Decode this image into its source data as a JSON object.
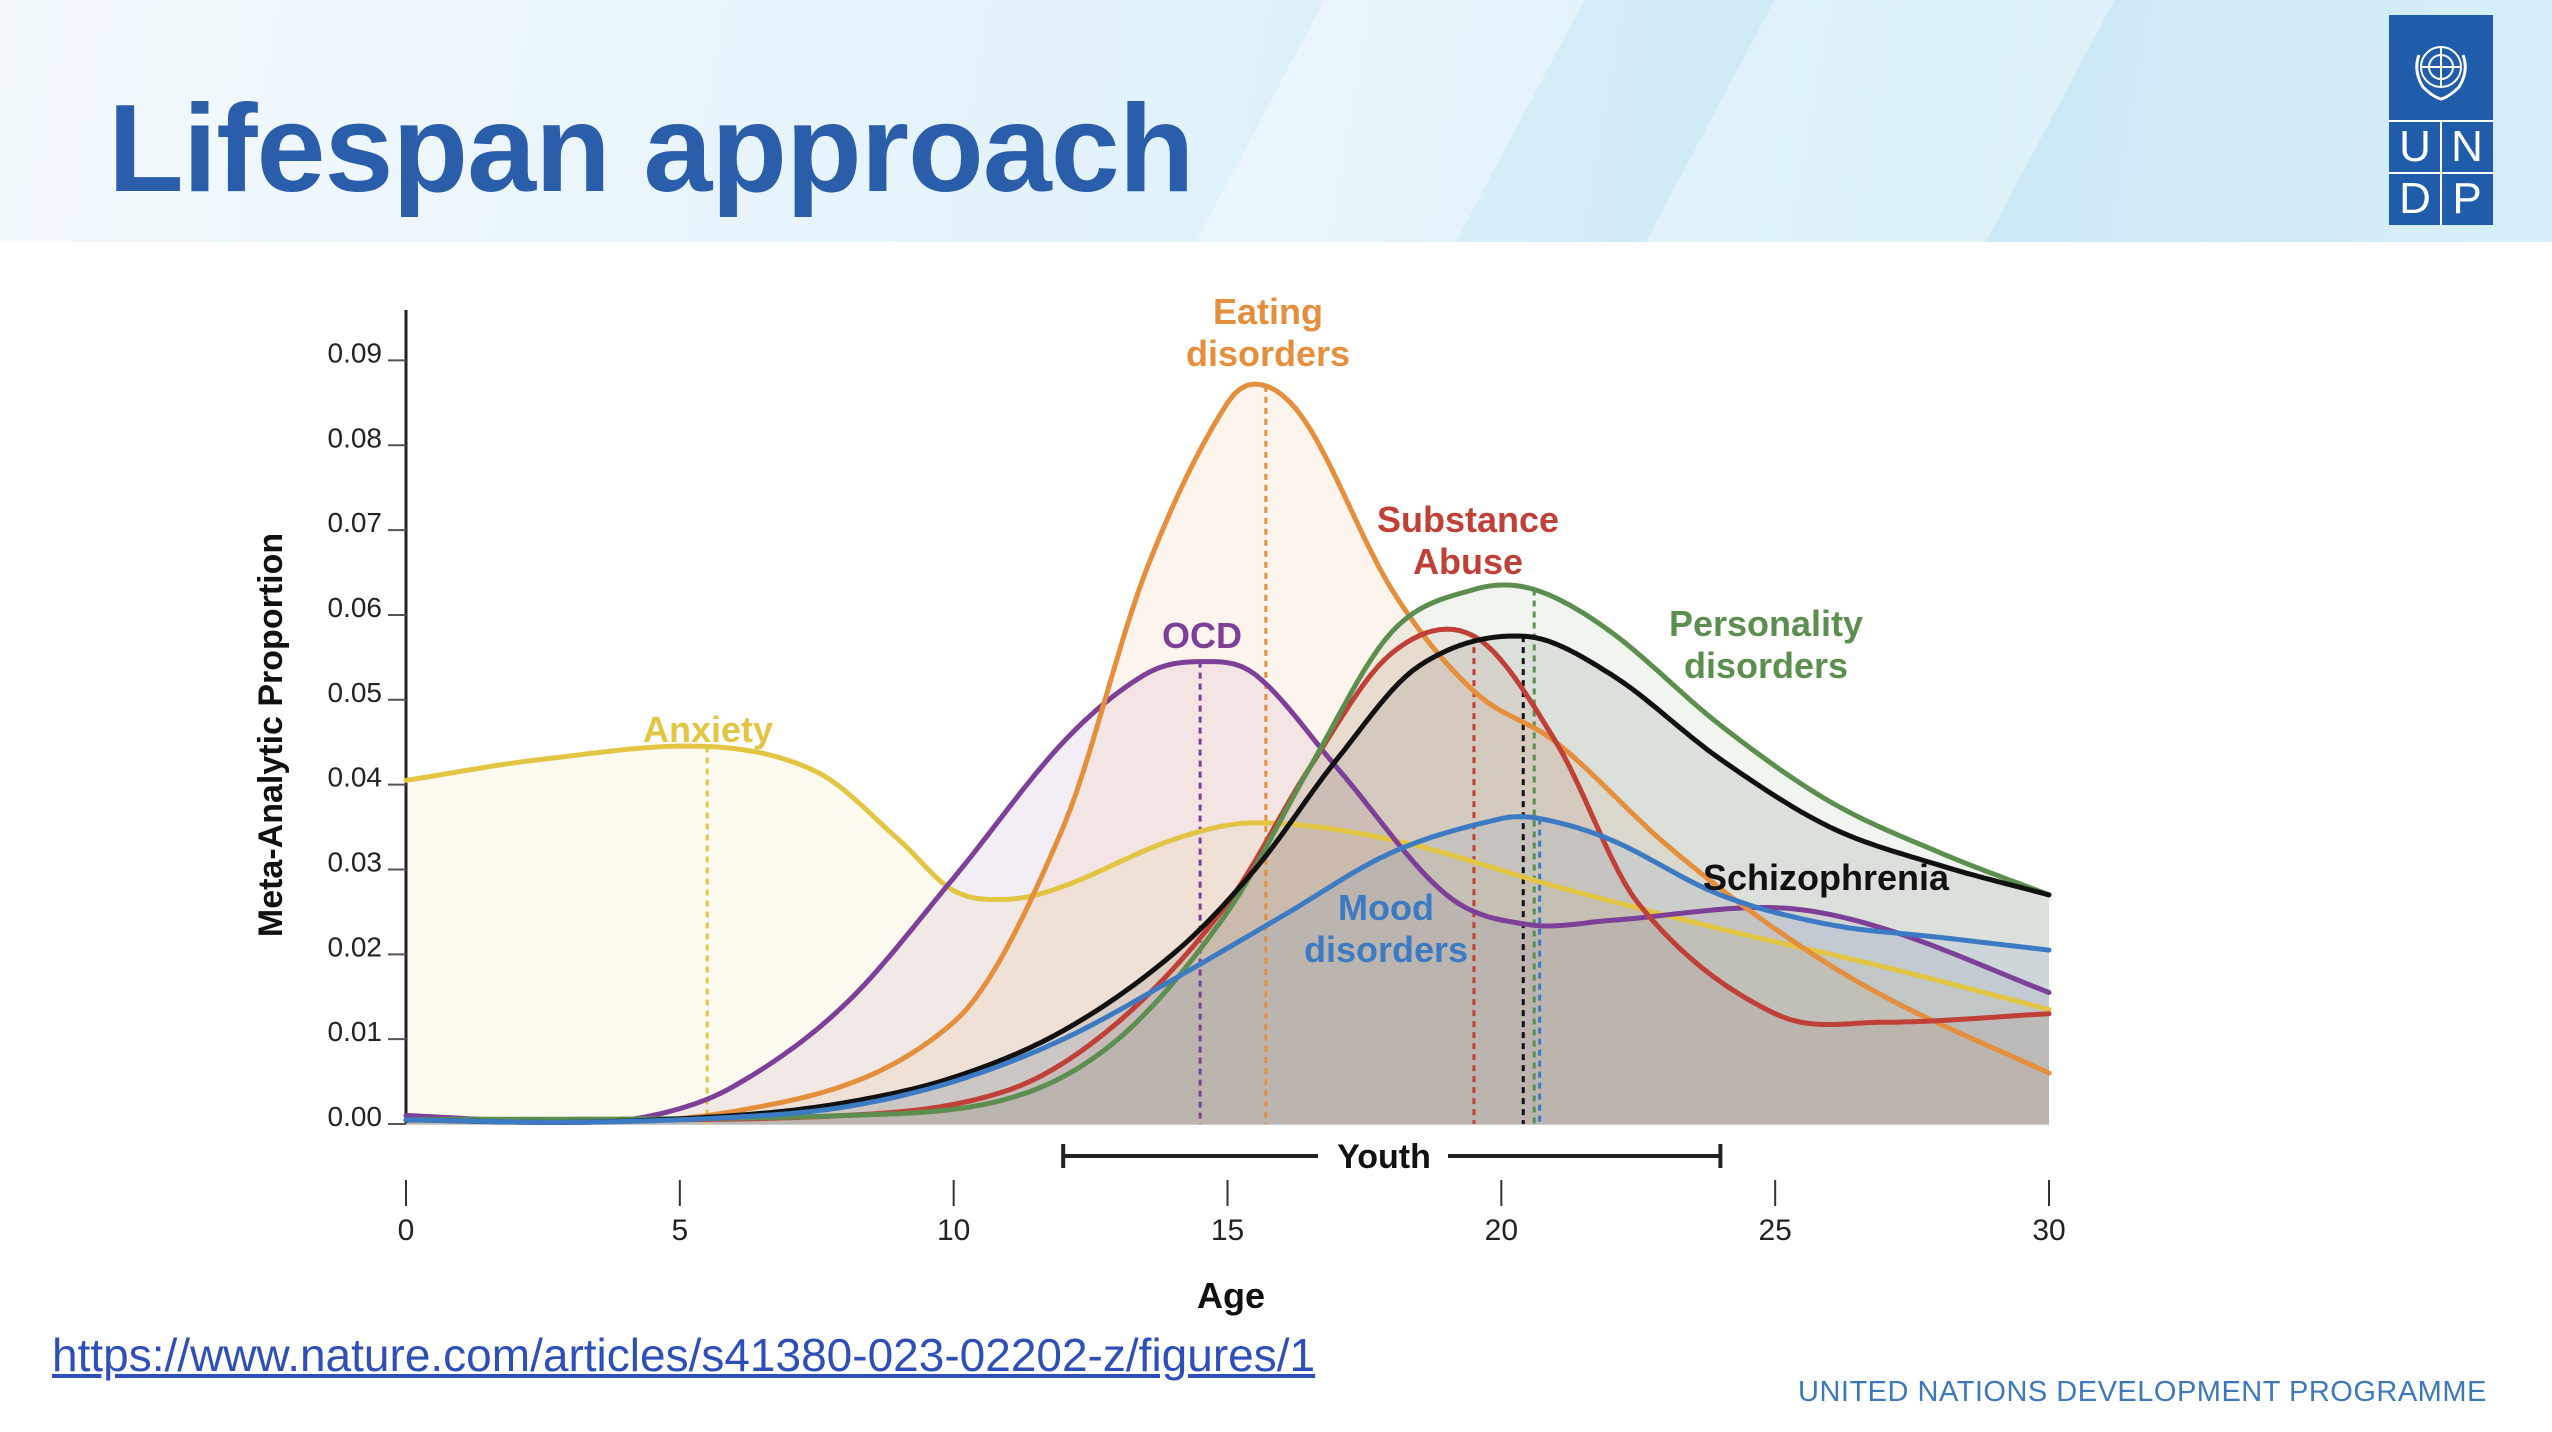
{
  "slide": {
    "title": "Lifespan approach",
    "logo_letters": [
      "U",
      "N",
      "D",
      "P"
    ],
    "source_url": "https://www.nature.com/articles/s41380-023-02202-z/figures/1",
    "footer": "UNITED NATIONS DEVELOPMENT PROGRAMME"
  },
  "chart_data": {
    "type": "line",
    "title": "",
    "xlabel": "Age",
    "ylabel": "Meta-Analytic Proportion",
    "xlim": [
      0,
      30
    ],
    "ylim": [
      0,
      0.095
    ],
    "x_ticks": [
      0,
      5,
      10,
      15,
      20,
      25,
      30
    ],
    "y_ticks": [
      "0.00",
      "0.01",
      "0.02",
      "0.03",
      "0.04",
      "0.05",
      "0.06",
      "0.07",
      "0.08",
      "0.09"
    ],
    "grid": false,
    "legend": "none (series labeled directly on curves)",
    "youth_range": {
      "label": "Youth",
      "from": 12,
      "to": 24
    },
    "series": [
      {
        "name": "Anxiety",
        "color": "#e3c544",
        "peak_age": 5.5,
        "x": [
          0,
          2.5,
          5.5,
          7.5,
          9,
          10,
          11,
          12,
          14,
          15.5,
          18,
          21,
          24,
          27,
          30
        ],
        "y": [
          0.0405,
          0.043,
          0.0445,
          0.0415,
          0.0335,
          0.0275,
          0.0265,
          0.028,
          0.0335,
          0.0355,
          0.0335,
          0.028,
          0.023,
          0.0185,
          0.0135
        ]
      },
      {
        "name": "OCD",
        "color": "#7e3f98",
        "peak_age": 14.5,
        "x": [
          0,
          3,
          4.5,
          6,
          8,
          10,
          12,
          13.5,
          14.5,
          15.5,
          17,
          19,
          20.5,
          22,
          25,
          27,
          30
        ],
        "y": [
          0.001,
          0.0002,
          0.001,
          0.0045,
          0.014,
          0.029,
          0.045,
          0.053,
          0.0545,
          0.053,
          0.042,
          0.027,
          0.0235,
          0.024,
          0.0255,
          0.023,
          0.0155
        ]
      },
      {
        "name": "Eating disorders",
        "color": "#e58e3c",
        "peak_age": 15.7,
        "x": [
          0,
          6,
          10,
          12,
          13.5,
          15,
          15.7,
          16.5,
          18,
          19.5,
          21,
          23,
          25,
          27,
          30
        ],
        "y": [
          0.0005,
          0.0015,
          0.012,
          0.035,
          0.065,
          0.085,
          0.087,
          0.082,
          0.063,
          0.051,
          0.045,
          0.033,
          0.023,
          0.015,
          0.006
        ]
      },
      {
        "name": "Substance Abuse",
        "color": "#c04038",
        "peak_age": 19.5,
        "x": [
          0,
          8,
          11,
          13,
          15,
          16.5,
          18,
          19.5,
          21,
          22.5,
          25,
          27,
          30
        ],
        "y": [
          0.0005,
          0.001,
          0.004,
          0.012,
          0.026,
          0.042,
          0.0555,
          0.0575,
          0.045,
          0.026,
          0.013,
          0.012,
          0.013
        ]
      },
      {
        "name": "Personality disorders",
        "color": "#5c8e4f",
        "peak_age": 20.6,
        "x": [
          0,
          8,
          11,
          13,
          15,
          16.5,
          18,
          19.5,
          20.6,
          22,
          24,
          26,
          28,
          30
        ],
        "y": [
          0.0005,
          0.001,
          0.003,
          0.01,
          0.025,
          0.042,
          0.058,
          0.063,
          0.063,
          0.058,
          0.047,
          0.038,
          0.032,
          0.027
        ]
      },
      {
        "name": "Schizophrenia",
        "color": "#111111",
        "peak_age": 20.4,
        "x": [
          0,
          3,
          6,
          8,
          10,
          12,
          14,
          15.5,
          17,
          18.5,
          20.4,
          22,
          24,
          26,
          28,
          30
        ],
        "y": [
          0.0005,
          0.0002,
          0.001,
          0.0025,
          0.0055,
          0.011,
          0.02,
          0.03,
          0.043,
          0.054,
          0.0575,
          0.053,
          0.043,
          0.035,
          0.0305,
          0.027
        ]
      },
      {
        "name": "Mood disorders",
        "color": "#3c7bc3",
        "peak_age": 20.7,
        "x": [
          0,
          3,
          6,
          8,
          10,
          12,
          14,
          16,
          18,
          20,
          20.7,
          22,
          24,
          26,
          28,
          30
        ],
        "y": [
          0.0005,
          0.0002,
          0.0008,
          0.002,
          0.005,
          0.01,
          0.017,
          0.0245,
          0.032,
          0.036,
          0.036,
          0.0335,
          0.027,
          0.0235,
          0.022,
          0.0205
        ]
      }
    ]
  }
}
